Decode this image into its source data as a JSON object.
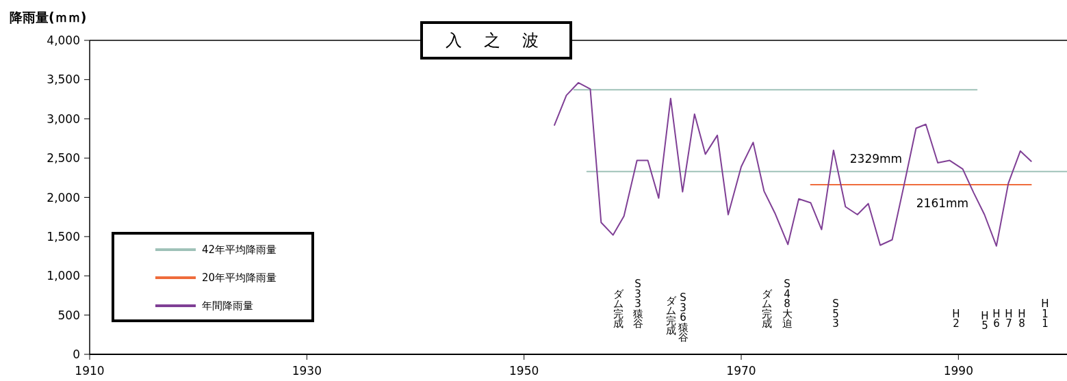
{
  "chart_data": {
    "type": "line",
    "title": "入 之 波",
    "ylabel": "降雨量(ｍｍ)",
    "xlim": [
      1910,
      2000
    ],
    "ylim": [
      0,
      4000
    ],
    "xticks": [
      1910,
      1930,
      1950,
      1970,
      1990
    ],
    "yticks": [
      0,
      500,
      {
        "value": 1000,
        "label": "1,000"
      },
      {
        "value": 1500,
        "label": "1,500"
      },
      {
        "value": 2000,
        "label": "2,000"
      },
      {
        "value": 2500,
        "label": "2,500"
      },
      {
        "value": 3000,
        "label": "3,000"
      },
      {
        "value": 3500,
        "label": "3,500"
      },
      {
        "value": 4000,
        "label": "4,000"
      }
    ],
    "legend": "bottom left",
    "series": [
      {
        "color": "#9fc2b8",
        "x": [
          1954.6,
          1991.7
        ],
        "values": [
          3370,
          3370
        ]
      },
      {
        "name": "42年平均降雨量",
        "color": "#9fc2b8",
        "x": [
          1955.8,
          2000
        ],
        "values": [
          2329,
          2329
        ]
      },
      {
        "name": "20年平均降雨量",
        "color": "#ef6c3c",
        "x": [
          1976.4,
          1996.7
        ],
        "values": [
          2161,
          2161
        ]
      },
      {
        "name": "年間降雨量",
        "color": "#7f3f95",
        "x": [
          1952.8,
          1953.9,
          1955.0,
          1956.1,
          1957.1,
          1958.2,
          1959.2,
          1960.4,
          1961.4,
          1962.4,
          1963.5,
          1964.6,
          1965.7,
          1966.7,
          1967.8,
          1968.8,
          1970.0,
          1971.1,
          1972.1,
          1973.1,
          1974.3,
          1975.3,
          1976.4,
          1977.4,
          1978.5,
          1979.6,
          1980.7,
          1981.7,
          1982.8,
          1983.9,
          1985.0,
          1986.1,
          1987.0,
          1988.1,
          1989.2,
          1990.4,
          1991.4,
          1992.4,
          1993.5,
          1994.6,
          1995.7,
          1996.7
        ],
        "values": [
          2920,
          3300,
          3460,
          3380,
          1680,
          1520,
          1760,
          2470,
          2470,
          1990,
          3260,
          2070,
          3060,
          2550,
          2790,
          1780,
          2390,
          2700,
          2080,
          1800,
          1400,
          1980,
          1930,
          1590,
          2600,
          1880,
          1780,
          1920,
          1390,
          1460,
          2160,
          2880,
          2930,
          2440,
          2470,
          2360,
          2060,
          1780,
          1380,
          2180,
          2590,
          2460
        ]
      }
    ],
    "annotations": [
      "2329mm",
      "2161mm",
      "ダム完成",
      "S33猿谷",
      "ダム完成",
      "S36猿谷",
      "ダム完成",
      "S48大迫",
      "S53",
      "H2",
      "H5",
      "H6",
      "H7",
      "H8",
      "H11"
    ]
  }
}
